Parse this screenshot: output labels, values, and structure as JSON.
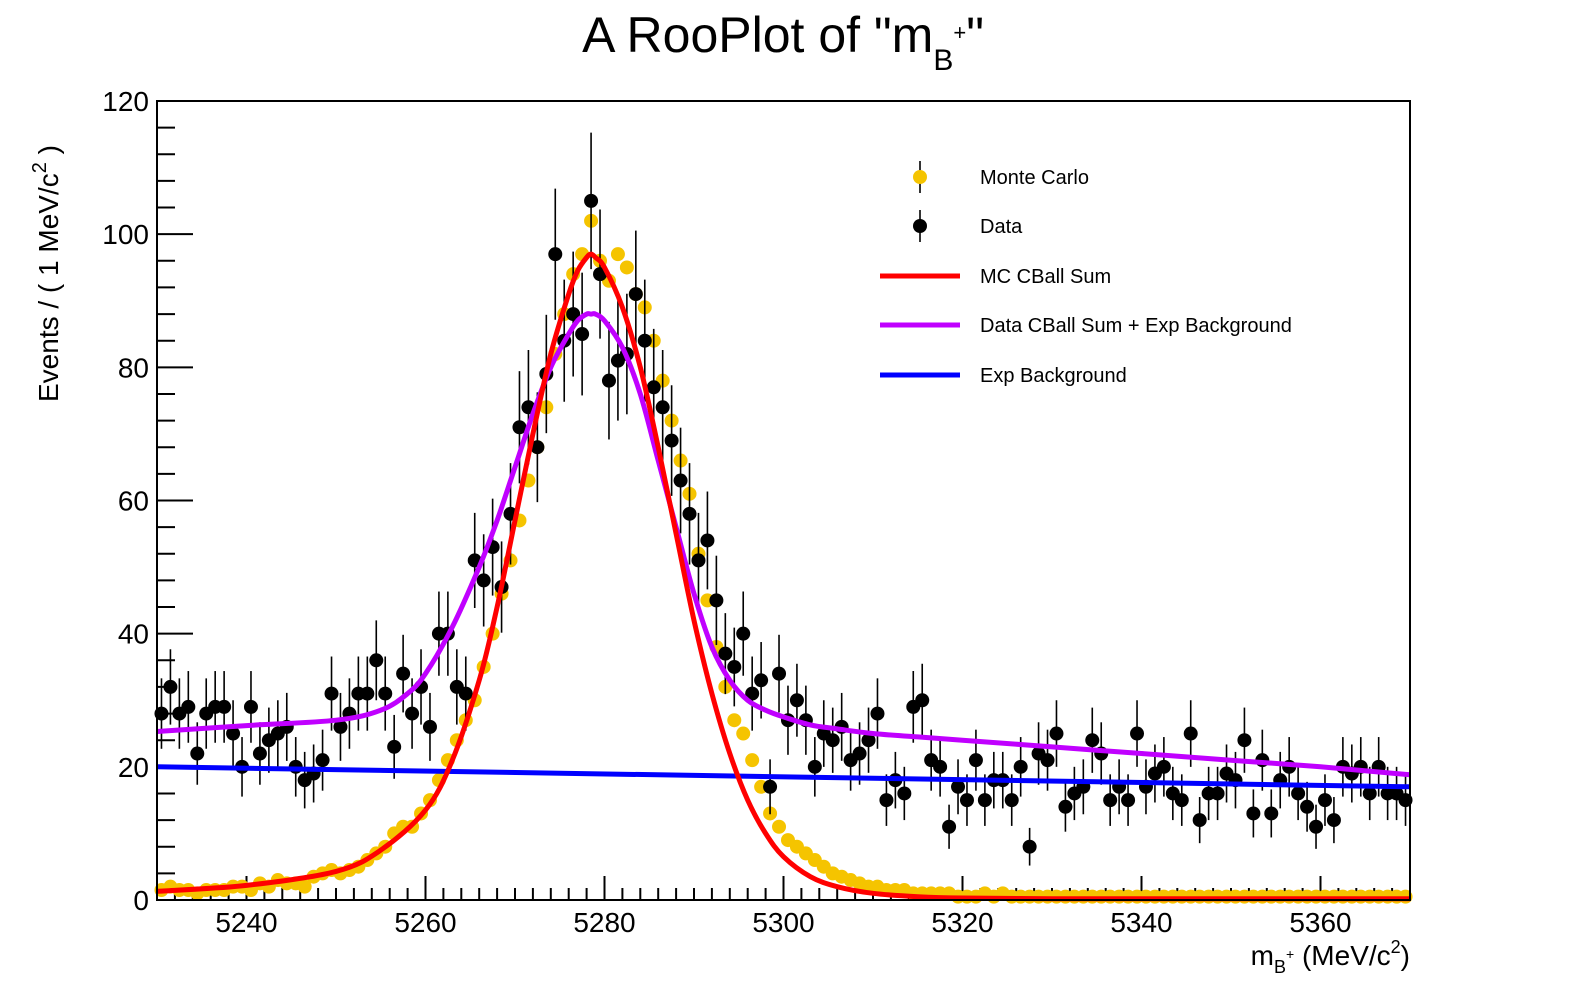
{
  "chart_data": {
    "type": "scatter",
    "title": "A RooPlot of \"m",
    "title_sub": "B",
    "title_sup": "+",
    "title_end": "\"",
    "ylabel": "Events / ( 1 MeV/c",
    "ylabel_sup": "2",
    "ylabel_end": " )",
    "xlabel_m": "m",
    "xlabel_sub": "B",
    "xlabel_sup": "+",
    "xlabel_unit": " (MeV/c",
    "xlabel_unit_sup": "2",
    "xlabel_end": ")",
    "xlim": [
      5230,
      5370
    ],
    "ylim": [
      0,
      120
    ],
    "x_ticks": [
      "5240",
      "5260",
      "5280",
      "5300",
      "5320",
      "5340",
      "5360"
    ],
    "y_ticks": [
      "0",
      "20",
      "40",
      "60",
      "80",
      "100",
      "120"
    ],
    "legend_position": "top-right",
    "legend": [
      {
        "label": "Monte Carlo",
        "kind": "marker",
        "color": "#f5c400"
      },
      {
        "label": "Data",
        "kind": "marker",
        "color": "#000000"
      },
      {
        "label": "MC CBall Sum",
        "kind": "line",
        "color": "#ff0000"
      },
      {
        "label": "Data CBall Sum + Exp Background",
        "kind": "line",
        "color": "#c000ff"
      },
      {
        "label": "Exp Background",
        "kind": "line",
        "color": "#0000ff"
      }
    ],
    "series": [
      {
        "name": "Monte Carlo",
        "kind": "points",
        "color": "#f5c400",
        "x": [
          5230.5,
          5231.5,
          5232.5,
          5233.5,
          5234.5,
          5235.5,
          5236.5,
          5237.5,
          5238.5,
          5239.5,
          5240.5,
          5241.5,
          5242.5,
          5243.5,
          5244.5,
          5245.5,
          5246.5,
          5247.5,
          5248.5,
          5249.5,
          5250.5,
          5251.5,
          5252.5,
          5253.5,
          5254.5,
          5255.5,
          5256.5,
          5257.5,
          5258.5,
          5259.5,
          5260.5,
          5261.5,
          5262.5,
          5263.5,
          5264.5,
          5265.5,
          5266.5,
          5267.5,
          5268.5,
          5269.5,
          5270.5,
          5271.5,
          5272.5,
          5273.5,
          5274.5,
          5275.5,
          5276.5,
          5277.5,
          5278.5,
          5279.5,
          5280.5,
          5281.5,
          5282.5,
          5283.5,
          5284.5,
          5285.5,
          5286.5,
          5287.5,
          5288.5,
          5289.5,
          5290.5,
          5291.5,
          5292.5,
          5293.5,
          5294.5,
          5295.5,
          5296.5,
          5297.5,
          5298.5,
          5299.5,
          5300.5,
          5301.5,
          5302.5,
          5303.5,
          5304.5,
          5305.5,
          5306.5,
          5307.5,
          5308.5,
          5309.5,
          5310.5,
          5311.5,
          5312.5,
          5313.5,
          5314.5,
          5315.5,
          5316.5,
          5317.5,
          5318.5,
          5319.5,
          5320.5,
          5321.5,
          5322.5,
          5323.5,
          5324.5,
          5325.5,
          5326.5,
          5327.5,
          5328.5,
          5329.5,
          5330.5,
          5331.5,
          5332.5,
          5333.5,
          5334.5,
          5335.5,
          5336.5,
          5337.5,
          5338.5,
          5339.5,
          5340.5,
          5341.5,
          5342.5,
          5343.5,
          5344.5,
          5345.5,
          5346.5,
          5347.5,
          5348.5,
          5349.5,
          5350.5,
          5351.5,
          5352.5,
          5353.5,
          5354.5,
          5355.5,
          5356.5,
          5357.5,
          5358.5,
          5359.5,
          5360.5,
          5361.5,
          5362.5,
          5363.5,
          5364.5,
          5365.5,
          5366.5,
          5367.5,
          5368.5,
          5369.5
        ],
        "y": [
          1.5,
          2,
          1.5,
          1.5,
          1,
          1.5,
          1.5,
          1.5,
          2,
          2,
          1.5,
          2.5,
          2,
          3,
          2.5,
          2.5,
          2,
          3.5,
          4,
          4.5,
          4,
          4.5,
          5,
          6,
          7,
          8,
          10,
          11,
          11,
          13,
          15,
          18,
          21,
          24,
          27,
          30,
          35,
          40,
          46,
          51,
          57,
          63,
          68,
          74,
          82,
          88,
          94,
          97,
          102,
          96,
          93,
          97,
          95,
          91,
          89,
          84,
          78,
          72,
          66,
          61,
          52,
          45,
          38,
          32,
          27,
          25,
          21,
          17,
          13,
          11,
          9,
          8,
          7,
          6,
          5,
          4,
          3.5,
          3,
          2.5,
          2,
          2,
          1.5,
          1.5,
          1.5,
          1,
          1,
          1,
          1,
          1,
          0.5,
          0.5,
          0.5,
          1,
          0.5,
          1,
          0.5,
          0.5,
          0.5,
          0.5,
          0.5,
          0.5,
          0.5,
          0.5,
          0.5,
          0.5,
          0.5,
          0.5,
          0.5,
          0.5,
          0.5,
          0.5,
          0.5,
          0.5,
          0.5,
          0.5,
          0.5,
          0.5,
          0.5,
          0.5,
          0.5,
          0.5,
          0.5,
          0.5,
          0.5,
          0.5,
          0.5,
          0.5,
          0.5,
          0.5,
          0.5,
          0.5,
          0.5,
          0.5,
          0.5,
          0.5,
          0.5,
          0.5,
          0.5,
          0.5,
          0.5
        ]
      },
      {
        "name": "Data",
        "kind": "points_with_errors",
        "color": "#000000",
        "x": [
          5230.5,
          5231.5,
          5232.5,
          5233.5,
          5234.5,
          5235.5,
          5236.5,
          5237.5,
          5238.5,
          5239.5,
          5240.5,
          5241.5,
          5242.5,
          5243.5,
          5244.5,
          5245.5,
          5246.5,
          5247.5,
          5248.5,
          5249.5,
          5250.5,
          5251.5,
          5252.5,
          5253.5,
          5254.5,
          5255.5,
          5256.5,
          5257.5,
          5258.5,
          5259.5,
          5260.5,
          5261.5,
          5262.5,
          5263.5,
          5264.5,
          5265.5,
          5266.5,
          5267.5,
          5268.5,
          5269.5,
          5270.5,
          5271.5,
          5272.5,
          5273.5,
          5274.5,
          5275.5,
          5276.5,
          5277.5,
          5278.5,
          5279.5,
          5280.5,
          5281.5,
          5282.5,
          5283.5,
          5284.5,
          5285.5,
          5286.5,
          5287.5,
          5288.5,
          5289.5,
          5290.5,
          5291.5,
          5292.5,
          5293.5,
          5294.5,
          5295.5,
          5296.5,
          5297.5,
          5298.5,
          5299.5,
          5300.5,
          5301.5,
          5302.5,
          5303.5,
          5304.5,
          5305.5,
          5306.5,
          5307.5,
          5308.5,
          5309.5,
          5310.5,
          5311.5,
          5312.5,
          5313.5,
          5314.5,
          5315.5,
          5316.5,
          5317.5,
          5318.5,
          5319.5,
          5320.5,
          5321.5,
          5322.5,
          5323.5,
          5324.5,
          5325.5,
          5326.5,
          5327.5,
          5328.5,
          5329.5,
          5330.5,
          5331.5,
          5332.5,
          5333.5,
          5334.5,
          5335.5,
          5336.5,
          5337.5,
          5338.5,
          5339.5,
          5340.5,
          5341.5,
          5342.5,
          5343.5,
          5344.5,
          5345.5,
          5346.5,
          5347.5,
          5348.5,
          5349.5,
          5350.5,
          5351.5,
          5352.5,
          5353.5,
          5354.5,
          5355.5,
          5356.5,
          5357.5,
          5358.5,
          5359.5,
          5360.5,
          5361.5,
          5362.5,
          5363.5,
          5364.5,
          5365.5,
          5366.5,
          5367.5,
          5368.5,
          5369.5
        ],
        "y": [
          28,
          32,
          28,
          29,
          22,
          28,
          29,
          29,
          25,
          20,
          29,
          22,
          24,
          25,
          26,
          20,
          18,
          19,
          21,
          31,
          26,
          28,
          31,
          31,
          36,
          31,
          23,
          34,
          28,
          32,
          26,
          40,
          40,
          32,
          31,
          51,
          48,
          53,
          47,
          58,
          71,
          74,
          68,
          79,
          97,
          84,
          88,
          85,
          105,
          94,
          78,
          81,
          82,
          91,
          84,
          77,
          74,
          69,
          63,
          58,
          51,
          54,
          45,
          37,
          35,
          40,
          31,
          33,
          17,
          34,
          27,
          30,
          27,
          20,
          25,
          24,
          26,
          21,
          22,
          24,
          28,
          15,
          18,
          16,
          29,
          30,
          21,
          20,
          11,
          17,
          15,
          21,
          15,
          18,
          18,
          15,
          20,
          8,
          22,
          21,
          25,
          14,
          16,
          17,
          24,
          22,
          15,
          17,
          15,
          25,
          17,
          19,
          20,
          16,
          15,
          25,
          12,
          16,
          16,
          19,
          18,
          24,
          13,
          21,
          13,
          18,
          20,
          16,
          14,
          11,
          15,
          12,
          20,
          19,
          20,
          16,
          20,
          16,
          16,
          15
        ]
      },
      {
        "name": "MC CBall Sum",
        "kind": "curve",
        "color": "#ff0000",
        "x": [
          5230,
          5240,
          5250,
          5255,
          5260,
          5263,
          5266,
          5268,
          5270,
          5272,
          5274,
          5276,
          5277,
          5278,
          5278.5,
          5279,
          5280,
          5282,
          5284,
          5286,
          5288,
          5290,
          5292,
          5294,
          5296,
          5298,
          5300,
          5303,
          5306,
          5310,
          5315,
          5320,
          5330,
          5340,
          5350,
          5360,
          5370
        ],
        "y": [
          1.3,
          2.2,
          4.3,
          7.5,
          13.5,
          21,
          33,
          44,
          57,
          70,
          82,
          91,
          94.5,
          96.5,
          97,
          96.5,
          95,
          89,
          80,
          68,
          55,
          42,
          31,
          22,
          15,
          10,
          6.5,
          3.5,
          2,
          1,
          0.5,
          0.3,
          0.2,
          0.2,
          0.2,
          0.2,
          0.2
        ]
      },
      {
        "name": "Data CBall Sum + Exp Background",
        "kind": "curve",
        "color": "#c000ff",
        "x": [
          5230,
          5240,
          5250,
          5255,
          5258,
          5260,
          5263,
          5266,
          5268,
          5270,
          5272,
          5274,
          5276,
          5277,
          5278,
          5278.5,
          5279,
          5280,
          5282,
          5284,
          5286,
          5288,
          5290,
          5292,
          5294,
          5296,
          5298,
          5300,
          5303,
          5306,
          5310,
          5315,
          5320,
          5330,
          5340,
          5350,
          5360,
          5370
        ],
        "y": [
          25.3,
          26.2,
          27,
          28.5,
          31,
          34,
          41,
          50,
          57,
          65,
          73,
          80,
          85,
          87,
          88,
          88,
          88,
          87,
          83,
          76,
          66,
          56,
          46,
          38,
          33,
          30,
          28.5,
          27.5,
          26.3,
          25.7,
          25,
          24.5,
          24,
          23,
          22,
          21,
          20,
          18.8
        ]
      },
      {
        "name": "Exp Background",
        "kind": "curve",
        "color": "#0000ff",
        "x": [
          5230,
          5370
        ],
        "y": [
          20,
          17
        ]
      }
    ]
  }
}
